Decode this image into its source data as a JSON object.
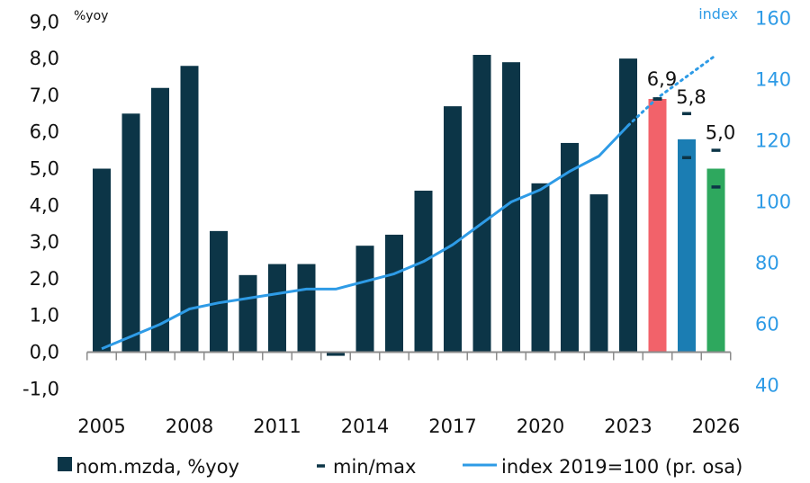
{
  "chart_data": {
    "type": "bar",
    "left_axis": {
      "unit_label": "%yoy",
      "ylim": [
        -1.0,
        9.0
      ],
      "ticks": [
        9.0,
        8.0,
        7.0,
        6.0,
        5.0,
        4.0,
        3.0,
        2.0,
        1.0,
        0.0,
        -1.0
      ],
      "tick_labels": [
        "9,0",
        "8,0",
        "7,0",
        "6,0",
        "5,0",
        "4,0",
        "3,0",
        "2,0",
        "1,0",
        "0,0",
        "-1,0"
      ]
    },
    "right_axis": {
      "unit_label": "index",
      "ylim": [
        40,
        160
      ],
      "ticks": [
        160,
        140,
        120,
        100,
        80,
        60,
        40
      ],
      "tick_labels": [
        "160",
        "140",
        "120",
        "100",
        "80",
        "60",
        "40"
      ]
    },
    "x_tick_labels": [
      "2005",
      "2008",
      "2011",
      "2014",
      "2017",
      "2020",
      "2023",
      "2026"
    ],
    "years": [
      2005,
      2006,
      2007,
      2008,
      2009,
      2010,
      2011,
      2012,
      2013,
      2014,
      2015,
      2016,
      2017,
      2018,
      2019,
      2020,
      2021,
      2022,
      2023,
      2024,
      2025,
      2026
    ],
    "bars": {
      "name": "nom.mzda, %yoy",
      "values": [
        5.0,
        6.5,
        7.2,
        7.8,
        3.3,
        2.1,
        2.4,
        2.4,
        -0.1,
        2.9,
        3.2,
        4.4,
        6.7,
        8.1,
        7.9,
        4.6,
        5.7,
        4.3,
        8.0,
        6.9,
        5.8,
        5.0
      ],
      "colors": [
        "#0c3547",
        "#0c3547",
        "#0c3547",
        "#0c3547",
        "#0c3547",
        "#0c3547",
        "#0c3547",
        "#0c3547",
        "#0c3547",
        "#0c3547",
        "#0c3547",
        "#0c3547",
        "#0c3547",
        "#0c3547",
        "#0c3547",
        "#0c3547",
        "#0c3547",
        "#0c3547",
        "#0c3547",
        "#f2626a",
        "#1b7db3",
        "#2ea85e"
      ]
    },
    "data_labels": [
      {
        "year": 2024,
        "value": 6.9,
        "text": "6,9"
      },
      {
        "year": 2025,
        "value": 5.8,
        "text": "5,8"
      },
      {
        "year": 2026,
        "value": 5.0,
        "text": "5,0"
      }
    ],
    "min_max": {
      "name": "min/max",
      "points": [
        {
          "year": 2024,
          "min": 6.9,
          "max": 6.9
        },
        {
          "year": 2025,
          "min": 5.3,
          "max": 6.5
        },
        {
          "year": 2026,
          "min": 4.5,
          "max": 5.5
        }
      ]
    },
    "index_line": {
      "name": "index 2019=100 (pr. osa)",
      "solid_years": [
        2005,
        2006,
        2007,
        2008,
        2009,
        2010,
        2011,
        2012,
        2013,
        2014,
        2015,
        2016,
        2017,
        2018,
        2019,
        2020,
        2021,
        2022,
        2023
      ],
      "solid_values": [
        52,
        56,
        60,
        65,
        67,
        68.5,
        70,
        71.5,
        71.5,
        74,
        76.5,
        80.5,
        86,
        93,
        100,
        104,
        110,
        115,
        125
      ],
      "dotted_years": [
        2023,
        2024,
        2025,
        2026
      ],
      "dotted_values": [
        125,
        134,
        141,
        148
      ]
    },
    "legend": [
      {
        "type": "bar",
        "label": "nom.mzda, %yoy"
      },
      {
        "type": "dash",
        "label": "min/max"
      },
      {
        "type": "line",
        "label": "index 2019=100 (pr. osa)"
      }
    ],
    "colors": {
      "bar": "#0c3547",
      "index_line": "#2e9be6",
      "right_axis_text": "#2e9be6",
      "minmax": "#0c3547",
      "axis": "#8c8c8c"
    }
  }
}
